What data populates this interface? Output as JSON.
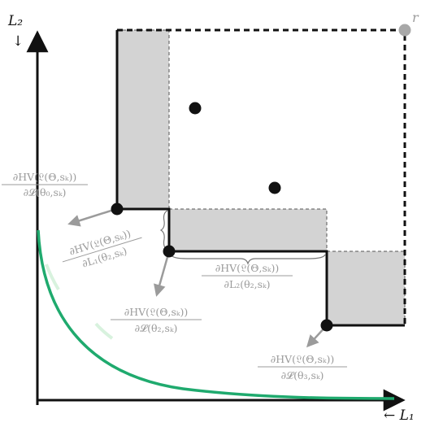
{
  "axes": {
    "x_label": "← L₁",
    "y_label": "L₂",
    "y_arrow": "↓"
  },
  "reference_point_label": "r",
  "gradient_labels": {
    "g0_num": "∂HV(𝔏(Θ,sₖ))",
    "g0_den": "∂𝓛(θ₀,sₖ)",
    "g1_num": "∂HV(𝔏(Θ,sₖ))",
    "g1_den": "∂L₁(θ₂,sₖ)",
    "g2_num": "∂HV(𝔏(Θ,sₖ))",
    "g2_den": "∂𝓛(θ₂,sₖ)",
    "g3_num": "∂HV(𝔏(Θ,sₖ))",
    "g3_den": "∂L₂(θ₂,sₖ)",
    "g4_num": "∂HV(𝔏(Θ,sₖ))",
    "g4_den": "∂𝓛(θ₃,sₖ)"
  },
  "colors": {
    "front_curve": "#1faa6e",
    "front_curve_light": "#d8f2de",
    "shade": "#d3d3d3",
    "point": "#111111",
    "reference_point": "#a8a8a8",
    "arrow": "#9b9b9b"
  }
}
